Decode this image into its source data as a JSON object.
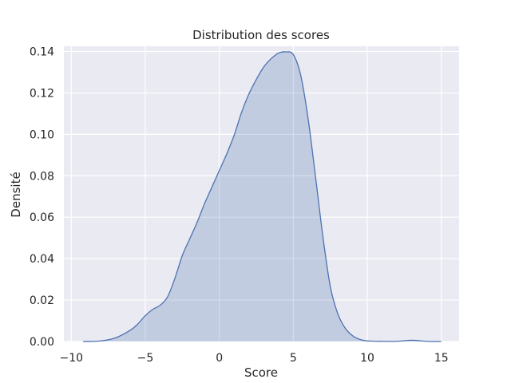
{
  "chart_data": {
    "type": "area",
    "title": "Distribution des scores",
    "xlabel": "Score",
    "ylabel": "Densité",
    "xlim": [
      -10.5,
      16.2
    ],
    "ylim": [
      0,
      0.1425
    ],
    "xticks": [
      -10,
      -5,
      0,
      5,
      10,
      15
    ],
    "xtick_labels": [
      "−10",
      "−5",
      "0",
      "5",
      "10",
      "15"
    ],
    "yticks": [
      0,
      0.02,
      0.04,
      0.06,
      0.08,
      0.1,
      0.12,
      0.14
    ],
    "ytick_labels": [
      "0.00",
      "0.02",
      "0.04",
      "0.06",
      "0.08",
      "0.10",
      "0.12",
      "0.14"
    ],
    "grid": true,
    "series": [
      {
        "x": [
          -9.2,
          -8.0,
          -7.0,
          -6.0,
          -5.5,
          -5.0,
          -4.5,
          -4.0,
          -3.5,
          -3.0,
          -2.5,
          -2.0,
          -1.5,
          -1.0,
          -0.5,
          0.0,
          0.5,
          1.0,
          1.5,
          2.0,
          2.5,
          3.0,
          3.5,
          4.0,
          4.5,
          5.0,
          5.5,
          6.0,
          6.5,
          7.0,
          7.5,
          8.0,
          8.5,
          9.0,
          9.5,
          10.0,
          11.0,
          12.0,
          13.0,
          14.0,
          15.0
        ],
        "values": [
          0.0,
          0.0003,
          0.0018,
          0.0055,
          0.0085,
          0.0125,
          0.0155,
          0.0175,
          0.0215,
          0.0305,
          0.0415,
          0.0495,
          0.0575,
          0.0665,
          0.0745,
          0.0825,
          0.0905,
          0.0995,
          0.1105,
          0.1195,
          0.1265,
          0.1325,
          0.1365,
          0.1392,
          0.1398,
          0.1385,
          0.1285,
          0.1075,
          0.0795,
          0.0505,
          0.0265,
          0.0135,
          0.0065,
          0.0028,
          0.001,
          0.0003,
          0.0001,
          0.0001,
          0.0006,
          0.0001,
          0.0
        ]
      }
    ],
    "colors": {
      "background": "#eaeaf2",
      "grid": "#ffffff",
      "line": "#4c72b0",
      "fill": "#c2cbe1"
    }
  }
}
